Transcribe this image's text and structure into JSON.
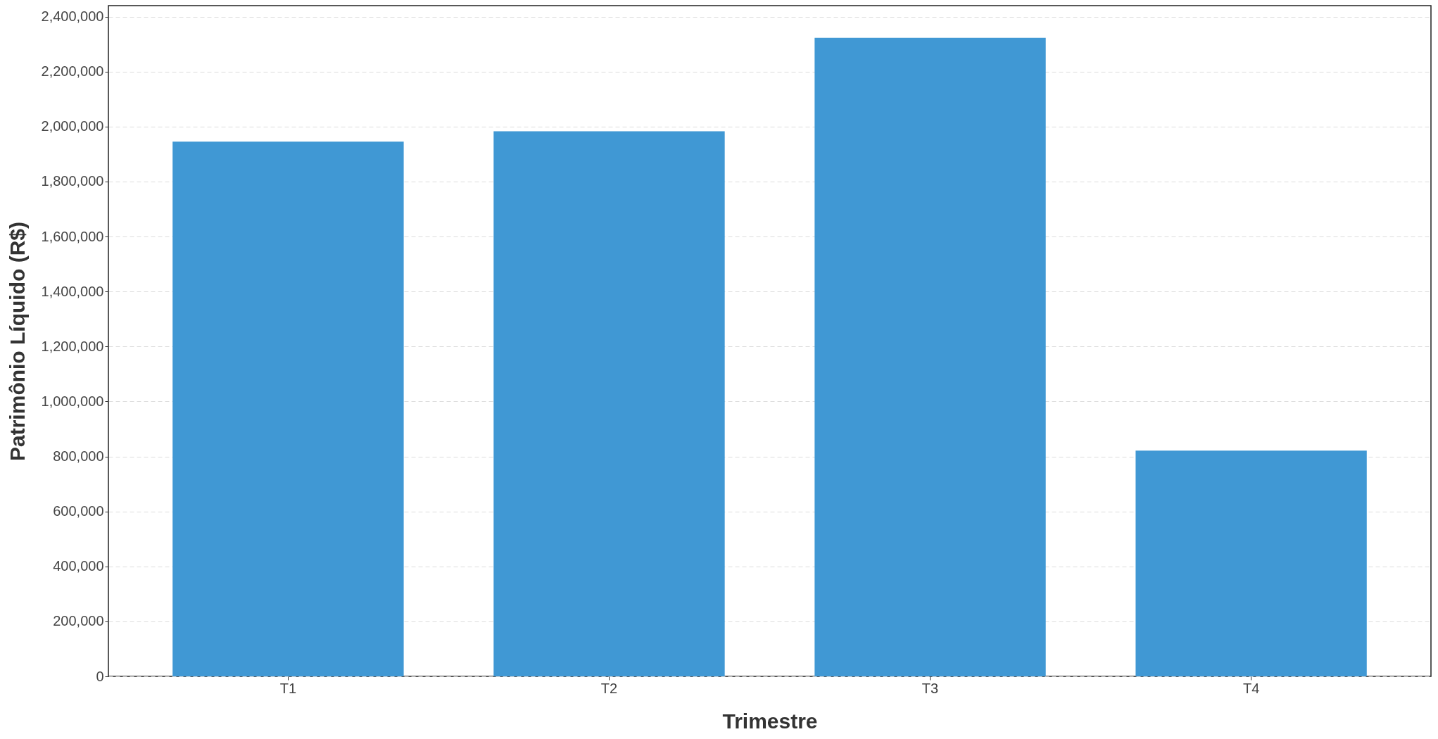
{
  "chart_data": {
    "type": "bar",
    "xlabel": "Trimestre",
    "ylabel": "Patrimônio Líquido (R$)",
    "categories": [
      "T1",
      "T2",
      "T3",
      "T4"
    ],
    "values": [
      1945000,
      1983000,
      2323000,
      821000
    ],
    "color": "#4098d4",
    "ylim": [
      0,
      2440000
    ],
    "yticks": [
      {
        "value": 0,
        "label": "0"
      },
      {
        "value": 200000,
        "label": "200,000"
      },
      {
        "value": 400000,
        "label": "400,000"
      },
      {
        "value": 600000,
        "label": "600,000"
      },
      {
        "value": 800000,
        "label": "800,000"
      },
      {
        "value": 1000000,
        "label": "1,000,000"
      },
      {
        "value": 1200000,
        "label": "1,200,000"
      },
      {
        "value": 1400000,
        "label": "1,400,000"
      },
      {
        "value": 1600000,
        "label": "1,600,000"
      },
      {
        "value": 1800000,
        "label": "1,800,000"
      },
      {
        "value": 2000000,
        "label": "2,000,000"
      },
      {
        "value": 2200000,
        "label": "2,200,000"
      },
      {
        "value": 2400000,
        "label": "2,400,000"
      }
    ],
    "grid": "y"
  }
}
